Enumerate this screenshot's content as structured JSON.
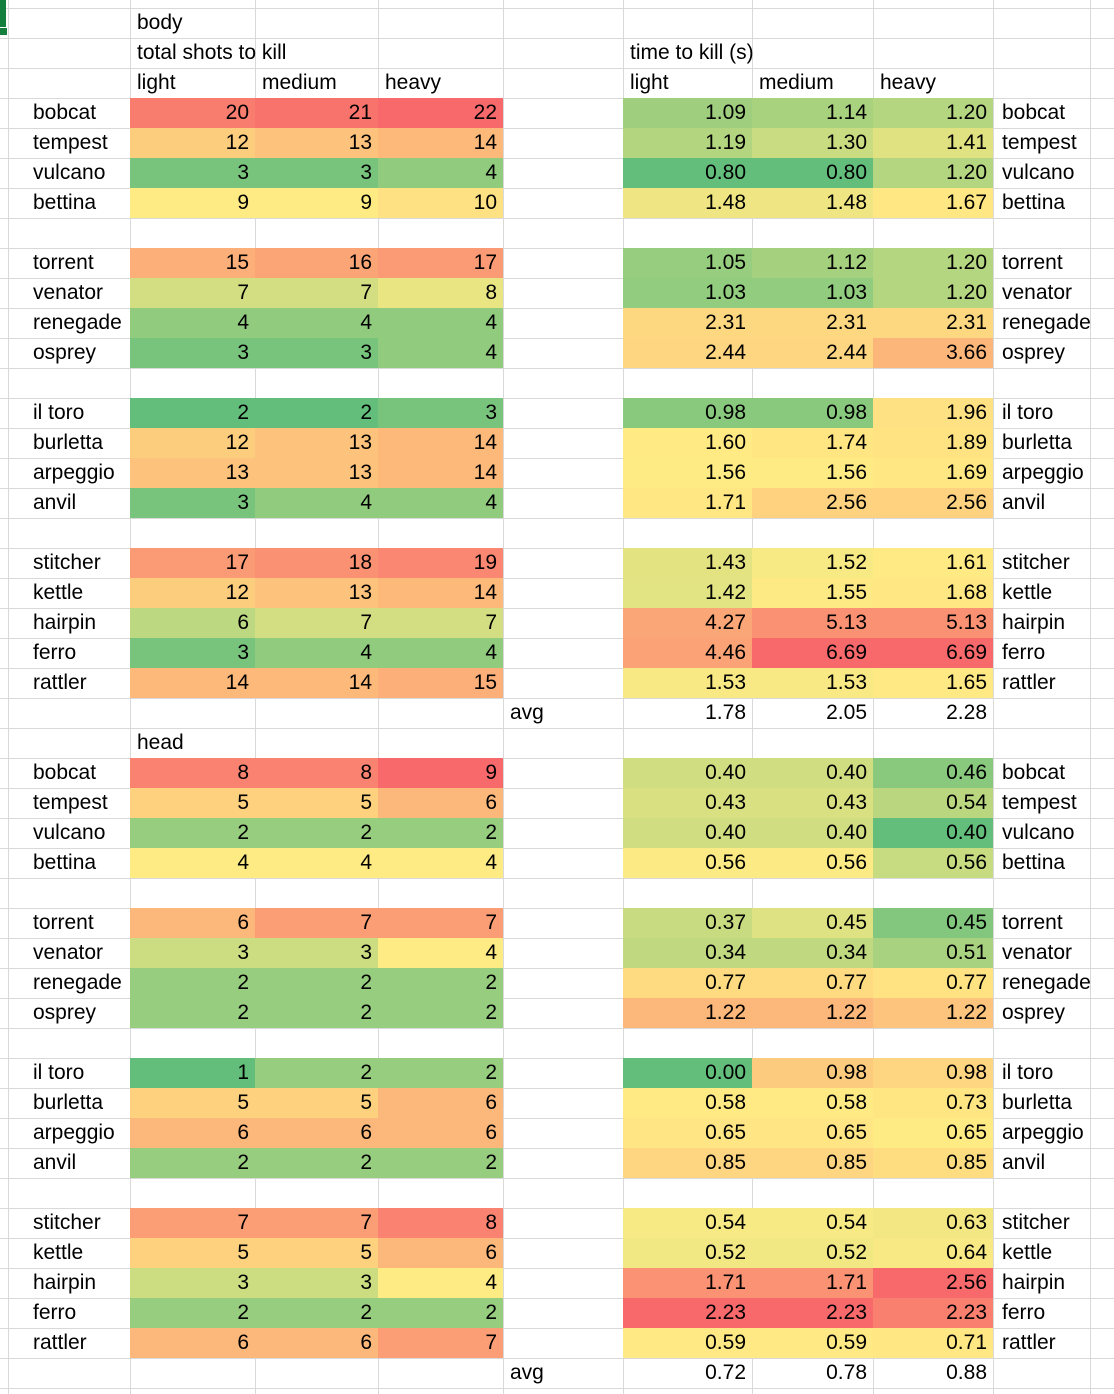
{
  "sheet": {
    "selection_marker_color": "#15803D",
    "gridline_color": "#D9D9D9",
    "scale": {
      "green": "#63BE7B",
      "yellow": "#FFEB84",
      "red": "#F8696B"
    },
    "column_headers": [
      "light",
      "medium",
      "heavy"
    ],
    "sections": [
      {
        "label": "body",
        "shots_title": "total shots to kill",
        "ttk_title": "time to kill (s)",
        "show_column_headers": true,
        "avg_label": "avg",
        "avg_ttk": [
          "1.78",
          "2.05",
          "2.28"
        ],
        "shots_scale_ranges": [
          [
            0,
            1,
            2
          ]
        ],
        "ttk_scale_ranges": [
          [
            0,
            1,
            2
          ]
        ],
        "groups": [
          [
            {
              "edge": "2",
              "name": "bobcat",
              "shots": [
                20,
                21,
                22
              ],
              "ttk": [
                "1.09",
                "1.14",
                "1.20"
              ]
            },
            {
              "edge": "3",
              "name": "tempest",
              "shots": [
                12,
                13,
                14
              ],
              "ttk": [
                "1.19",
                "1.30",
                "1.41"
              ]
            },
            {
              "edge": "2",
              "name": "vulcano",
              "shots": [
                3,
                3,
                4
              ],
              "ttk": [
                "0.80",
                "0.80",
                "1.20"
              ]
            },
            {
              "edge": "5",
              "name": "bettina",
              "shots": [
                9,
                9,
                10
              ],
              "ttk": [
                "1.48",
                "1.48",
                "1.67"
              ]
            }
          ],
          [
            {
              "edge": "0",
              "name": "torrent",
              "shots": [
                15,
                16,
                17
              ],
              "ttk": [
                "1.05",
                "1.12",
                "1.20"
              ]
            },
            {
              "edge": "4",
              "name": "venator",
              "shots": [
                7,
                7,
                8
              ],
              "ttk": [
                "1.03",
                "1.03",
                "1.20"
              ]
            },
            {
              "edge": "2",
              "name": "renegade",
              "shots": [
                4,
                4,
                4
              ],
              "ttk": [
                "2.31",
                "2.31",
                "2.31"
              ]
            },
            {
              "edge": "2",
              "name": "osprey",
              "shots": [
                3,
                3,
                4
              ],
              "ttk": [
                "2.44",
                "2.44",
                "3.66"
              ]
            }
          ],
          [
            {
              "edge": "2",
              "name": "il toro",
              "shots": [
                2,
                2,
                3
              ],
              "ttk": [
                "0.98",
                "0.98",
                "1.96"
              ]
            },
            {
              "edge": "5",
              "name": "burletta",
              "shots": [
                12,
                13,
                14
              ],
              "ttk": [
                "1.60",
                "1.74",
                "1.89"
              ]
            },
            {
              "edge": "3",
              "name": "arpeggio",
              "shots": [
                13,
                13,
                14
              ],
              "ttk": [
                "1.56",
                "1.56",
                "1.69"
              ]
            },
            {
              "edge": "2",
              "name": "anvil",
              "shots": [
                3,
                4,
                4
              ],
              "ttk": [
                "1.71",
                "2.56",
                "2.56"
              ]
            }
          ],
          [
            {
              "edge": "1",
              "name": "stitcher",
              "shots": [
                17,
                18,
                19
              ],
              "ttk": [
                "1.43",
                "1.52",
                "1.61"
              ]
            },
            {
              "edge": "3",
              "name": "kettle",
              "shots": [
                12,
                13,
                14
              ],
              "ttk": [
                "1.42",
                "1.55",
                "1.68"
              ]
            },
            {
              "edge": "4",
              "name": "hairpin",
              "shots": [
                6,
                7,
                7
              ],
              "ttk": [
                "4.27",
                "5.13",
                "5.13"
              ]
            },
            {
              "edge": "2",
              "name": "ferro",
              "shots": [
                3,
                4,
                4
              ],
              "ttk": [
                "4.46",
                "6.69",
                "6.69"
              ]
            },
            {
              "edge": "3",
              "name": "rattler",
              "shots": [
                14,
                14,
                15
              ],
              "ttk": [
                "1.53",
                "1.53",
                "1.65"
              ]
            }
          ]
        ]
      },
      {
        "label": "head",
        "shots_title": "",
        "ttk_title": "",
        "show_column_headers": false,
        "avg_label": "avg",
        "avg_ttk": [
          "0.72",
          "0.78",
          "0.88"
        ],
        "shots_scale_ranges": [
          [
            0,
            1,
            2
          ]
        ],
        "ttk_scale_ranges": [
          [
            0,
            1
          ],
          [
            2
          ]
        ],
        "groups": [
          [
            {
              "edge": "3",
              "name": "bobcat",
              "shots": [
                8,
                8,
                9
              ],
              "ttk": [
                "0.40",
                "0.40",
                "0.46"
              ]
            },
            {
              "edge": "5",
              "name": "tempest",
              "shots": [
                5,
                5,
                6
              ],
              "ttk": [
                "0.43",
                "0.43",
                "0.54"
              ]
            },
            {
              "edge": "2",
              "name": "vulcano",
              "shots": [
                2,
                2,
                2
              ],
              "ttk": [
                "0.40",
                "0.40",
                "0.40"
              ]
            },
            {
              "edge": "4",
              "name": "bettina",
              "shots": [
                4,
                4,
                4
              ],
              "ttk": [
                "0.56",
                "0.56",
                "0.56"
              ]
            }
          ],
          [
            {
              "edge": "4",
              "name": "torrent",
              "shots": [
                6,
                7,
                7
              ],
              "ttk": [
                "0.37",
                "0.45",
                "0.45"
              ]
            },
            {
              "edge": "2",
              "name": "venator",
              "shots": [
                3,
                3,
                4
              ],
              "ttk": [
                "0.34",
                "0.34",
                "0.51"
              ]
            },
            {
              "edge": "2",
              "name": "renegade",
              "shots": [
                2,
                2,
                2
              ],
              "ttk": [
                "0.77",
                "0.77",
                "0.77"
              ]
            },
            {
              "edge": "2",
              "name": "osprey",
              "shots": [
                2,
                2,
                2
              ],
              "ttk": [
                "1.22",
                "1.22",
                "1.22"
              ]
            }
          ],
          [
            {
              "edge": "2",
              "name": "il toro",
              "shots": [
                1,
                2,
                2
              ],
              "ttk": [
                "0.00",
                "0.98",
                "0.98"
              ]
            },
            {
              "edge": "5",
              "name": "burletta",
              "shots": [
                5,
                5,
                6
              ],
              "ttk": [
                "0.58",
                "0.58",
                "0.73"
              ]
            },
            {
              "edge": "3",
              "name": "arpeggio",
              "shots": [
                6,
                6,
                6
              ],
              "ttk": [
                "0.65",
                "0.65",
                "0.65"
              ]
            },
            {
              "edge": "2",
              "name": "anvil",
              "shots": [
                2,
                2,
                2
              ],
              "ttk": [
                "0.85",
                "0.85",
                "0.85"
              ]
            }
          ],
          [
            {
              "edge": "1",
              "name": "stitcher",
              "shots": [
                7,
                7,
                8
              ],
              "ttk": [
                "0.54",
                "0.54",
                "0.63"
              ]
            },
            {
              "edge": "3",
              "name": "kettle",
              "shots": [
                5,
                5,
                6
              ],
              "ttk": [
                "0.52",
                "0.52",
                "0.64"
              ]
            },
            {
              "edge": "4",
              "name": "hairpin",
              "shots": [
                3,
                3,
                4
              ],
              "ttk": [
                "1.71",
                "1.71",
                "2.56"
              ]
            },
            {
              "edge": "2",
              "name": "ferro",
              "shots": [
                2,
                2,
                2
              ],
              "ttk": [
                "2.23",
                "2.23",
                "2.23"
              ]
            },
            {
              "edge": "3",
              "name": "rattler",
              "shots": [
                6,
                6,
                7
              ],
              "ttk": [
                "0.59",
                "0.59",
                "0.71"
              ]
            }
          ]
        ]
      }
    ]
  }
}
